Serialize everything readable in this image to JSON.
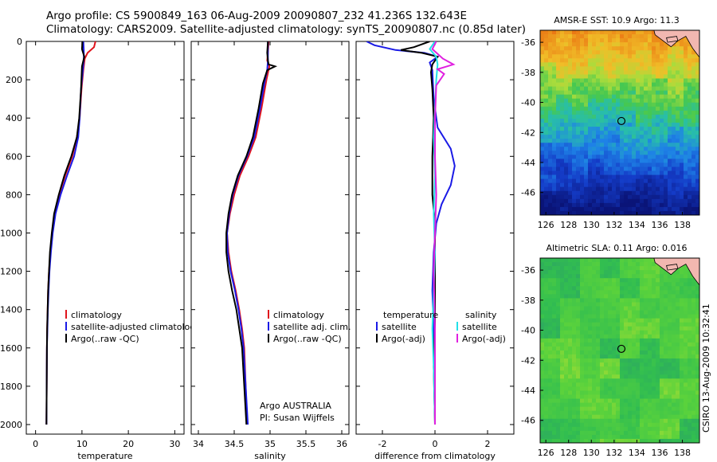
{
  "figure": {
    "title_line1": "Argo profile: CS 5900849_163 06-Aug-2009 20090807_232 41.236S 132.643E",
    "title_line2": "Climatology: CARS2009. Satellite-adjusted climatology: synTS_20090807.nc (0.85d later)",
    "credit": "CSIRO 13-Aug-2009 10:32:41"
  },
  "colors": {
    "climatology": "#e0141c",
    "satellite": "#1a1ae6",
    "argo": "#000000",
    "salinity_satellite": "#22e0e8",
    "salinity_argo": "#e020e0"
  },
  "chart_data": [
    {
      "type": "line",
      "name": "temperature-profile",
      "xlabel": "temperature",
      "ylabel": "",
      "xlim": [
        -2,
        32
      ],
      "ylim": [
        2050,
        0
      ],
      "xticks": [
        0,
        10,
        20,
        30
      ],
      "yticks": [
        0,
        200,
        400,
        600,
        800,
        1000,
        1200,
        1400,
        1600,
        1800,
        2000
      ],
      "legend": [
        "climatology",
        "satellite-adjusted climatolog",
        "Argo(..raw -QC)"
      ],
      "series": [
        {
          "name": "climatology",
          "color_key": "climatology",
          "points": [
            [
              12.9,
              0
            ],
            [
              12.6,
              30
            ],
            [
              11.2,
              60
            ],
            [
              10.6,
              90
            ],
            [
              10.3,
              150
            ],
            [
              9.9,
              250
            ],
            [
              9.5,
              400
            ],
            [
              8.9,
              500
            ],
            [
              7.9,
              600
            ],
            [
              6.4,
              700
            ],
            [
              5.1,
              800
            ],
            [
              4.1,
              900
            ],
            [
              3.6,
              1000
            ],
            [
              3.2,
              1100
            ],
            [
              2.9,
              1200
            ],
            [
              2.7,
              1300
            ],
            [
              2.6,
              1400
            ],
            [
              2.5,
              1500
            ],
            [
              2.45,
              1600
            ],
            [
              2.4,
              1800
            ],
            [
              2.35,
              2000
            ]
          ]
        },
        {
          "name": "satellite-adjusted climatolog",
          "color_key": "satellite",
          "points": [
            [
              10.3,
              0
            ],
            [
              10.4,
              50
            ],
            [
              10.4,
              90
            ],
            [
              10.2,
              150
            ],
            [
              9.8,
              250
            ],
            [
              9.5,
              400
            ],
            [
              9.2,
              500
            ],
            [
              8.3,
              600
            ],
            [
              6.8,
              700
            ],
            [
              5.4,
              800
            ],
            [
              4.3,
              900
            ],
            [
              3.7,
              1000
            ],
            [
              3.3,
              1100
            ],
            [
              3.0,
              1200
            ],
            [
              2.8,
              1300
            ],
            [
              2.65,
              1400
            ],
            [
              2.55,
              1500
            ],
            [
              2.45,
              1600
            ],
            [
              2.4,
              1800
            ],
            [
              2.35,
              2000
            ]
          ]
        },
        {
          "name": "Argo(..raw -QC)",
          "color_key": "argo",
          "points": [
            [
              10.1,
              0
            ],
            [
              10.0,
              40
            ],
            [
              10.5,
              80
            ],
            [
              10.0,
              130
            ],
            [
              9.8,
              250
            ],
            [
              9.4,
              400
            ],
            [
              8.9,
              500
            ],
            [
              7.7,
              600
            ],
            [
              6.2,
              700
            ],
            [
              5.0,
              800
            ],
            [
              4.0,
              900
            ],
            [
              3.5,
              1000
            ],
            [
              3.1,
              1100
            ],
            [
              2.9,
              1200
            ],
            [
              2.7,
              1300
            ],
            [
              2.6,
              1400
            ],
            [
              2.5,
              1500
            ],
            [
              2.45,
              1600
            ],
            [
              2.4,
              1800
            ],
            [
              2.35,
              2000
            ]
          ]
        }
      ]
    },
    {
      "type": "line",
      "name": "salinity-profile",
      "xlabel": "salinity",
      "xlim": [
        33.9,
        36.1
      ],
      "ylim": [
        2050,
        0
      ],
      "xticks": [
        34,
        34.5,
        35,
        35.5,
        36
      ],
      "xtick_labels": [
        "34",
        "34.5",
        "35",
        "35.5",
        "36"
      ],
      "legend": [
        "climatology",
        "satellite adj. clim.",
        "Argo(..raw -QC)"
      ],
      "annotation": [
        "Argo AUSTRALIA",
        "PI: Susan Wijffels"
      ],
      "series": [
        {
          "name": "climatology",
          "color_key": "climatology",
          "points": [
            [
              34.98,
              0
            ],
            [
              34.97,
              60
            ],
            [
              34.96,
              100
            ],
            [
              34.99,
              130
            ],
            [
              34.95,
              200
            ],
            [
              34.88,
              350
            ],
            [
              34.8,
              500
            ],
            [
              34.7,
              600
            ],
            [
              34.58,
              700
            ],
            [
              34.5,
              800
            ],
            [
              34.44,
              900
            ],
            [
              34.4,
              1000
            ],
            [
              34.42,
              1100
            ],
            [
              34.46,
              1200
            ],
            [
              34.52,
              1300
            ],
            [
              34.57,
              1400
            ],
            [
              34.61,
              1500
            ],
            [
              34.64,
              1600
            ],
            [
              34.66,
              1800
            ],
            [
              34.68,
              2000
            ]
          ]
        },
        {
          "name": "satellite adj. clim.",
          "color_key": "satellite",
          "points": [
            [
              34.97,
              0
            ],
            [
              34.97,
              60
            ],
            [
              34.97,
              100
            ],
            [
              34.96,
              150
            ],
            [
              34.93,
              200
            ],
            [
              34.86,
              350
            ],
            [
              34.78,
              500
            ],
            [
              34.68,
              600
            ],
            [
              34.56,
              700
            ],
            [
              34.48,
              800
            ],
            [
              34.43,
              900
            ],
            [
              34.4,
              1000
            ],
            [
              34.41,
              1100
            ],
            [
              34.45,
              1200
            ],
            [
              34.51,
              1300
            ],
            [
              34.56,
              1400
            ],
            [
              34.6,
              1500
            ],
            [
              34.63,
              1600
            ],
            [
              34.66,
              1800
            ],
            [
              34.69,
              2000
            ]
          ]
        },
        {
          "name": "Argo(..raw -QC)",
          "color_key": "argo",
          "points": [
            [
              34.97,
              0
            ],
            [
              34.96,
              60
            ],
            [
              34.97,
              100
            ],
            [
              34.98,
              120
            ],
            [
              35.07,
              130
            ],
            [
              34.96,
              150
            ],
            [
              34.9,
              220
            ],
            [
              34.84,
              350
            ],
            [
              34.76,
              500
            ],
            [
              34.67,
              600
            ],
            [
              34.55,
              700
            ],
            [
              34.47,
              800
            ],
            [
              34.42,
              900
            ],
            [
              34.39,
              1000
            ],
            [
              34.39,
              1100
            ],
            [
              34.42,
              1200
            ],
            [
              34.47,
              1300
            ],
            [
              34.53,
              1400
            ],
            [
              34.57,
              1500
            ],
            [
              34.61,
              1600
            ],
            [
              34.64,
              1800
            ],
            [
              34.67,
              2000
            ]
          ]
        }
      ]
    },
    {
      "type": "line",
      "name": "difference-profile",
      "xlabel": "difference from climatology",
      "xlim": [
        -3,
        3
      ],
      "ylim": [
        2050,
        0
      ],
      "xticks": [
        -2,
        0,
        2
      ],
      "legend_left_title": "temperature",
      "legend_right_title": "salinity",
      "legend_left": [
        "satellite",
        "Argo(-adj)"
      ],
      "legend_right": [
        "satellite",
        "Argo(-adj)"
      ],
      "series": [
        {
          "name": "temperature satellite",
          "color_key": "satellite",
          "points": [
            [
              -2.6,
              0
            ],
            [
              -2.3,
              20
            ],
            [
              -1.5,
              45
            ],
            [
              -0.4,
              60
            ],
            [
              0.1,
              80
            ],
            [
              -0.2,
              110
            ],
            [
              -0.1,
              150
            ],
            [
              -0.05,
              300
            ],
            [
              0.1,
              450
            ],
            [
              0.6,
              560
            ],
            [
              0.75,
              650
            ],
            [
              0.6,
              750
            ],
            [
              0.25,
              850
            ],
            [
              0.05,
              950
            ],
            [
              -0.05,
              1100
            ],
            [
              -0.1,
              1300
            ],
            [
              -0.05,
              1500
            ],
            [
              0.0,
              1700
            ],
            [
              0.0,
              2000
            ]
          ]
        },
        {
          "name": "temperature Argo(-adj)",
          "color_key": "argo",
          "points": [
            [
              -0.2,
              0
            ],
            [
              -0.8,
              30
            ],
            [
              -1.3,
              45
            ],
            [
              -0.5,
              60
            ],
            [
              0.1,
              80
            ],
            [
              -0.1,
              120
            ],
            [
              -0.15,
              160
            ],
            [
              -0.1,
              250
            ],
            [
              -0.05,
              400
            ],
            [
              -0.1,
              600
            ],
            [
              -0.1,
              800
            ],
            [
              0.0,
              950
            ],
            [
              0.0,
              1200
            ],
            [
              0.0,
              1500
            ],
            [
              -0.05,
              1700
            ],
            [
              0.0,
              2000
            ]
          ]
        },
        {
          "name": "salinity satellite",
          "color_key": "salinity_satellite",
          "points": [
            [
              0.0,
              0
            ],
            [
              -0.2,
              40
            ],
            [
              0.05,
              80
            ],
            [
              0.1,
              120
            ],
            [
              0.05,
              200
            ],
            [
              0.0,
              350
            ],
            [
              -0.05,
              500
            ],
            [
              0.0,
              700
            ],
            [
              -0.05,
              900
            ],
            [
              0.0,
              1100
            ],
            [
              -0.05,
              1300
            ],
            [
              -0.1,
              1500
            ],
            [
              -0.05,
              1700
            ],
            [
              0.0,
              2000
            ]
          ]
        },
        {
          "name": "salinity Argo(-adj)",
          "color_key": "salinity_argo",
          "points": [
            [
              0.05,
              0
            ],
            [
              -0.1,
              40
            ],
            [
              0.3,
              90
            ],
            [
              0.7,
              120
            ],
            [
              0.1,
              145
            ],
            [
              0.35,
              170
            ],
            [
              0.05,
              230
            ],
            [
              0.0,
              400
            ],
            [
              0.0,
              600
            ],
            [
              0.05,
              800
            ],
            [
              0.0,
              1000
            ],
            [
              -0.05,
              1200
            ],
            [
              0.0,
              1500
            ],
            [
              0.0,
              2000
            ]
          ]
        }
      ]
    },
    {
      "type": "heatmap",
      "name": "sst-map",
      "title": "AMSR-E SST: 10.9 Argo: 11.3",
      "xlim": [
        125.5,
        139.5
      ],
      "ylim": [
        -47.5,
        -35.2
      ],
      "xticks": [
        126,
        128,
        130,
        132,
        134,
        136,
        138
      ],
      "yticks": [
        -36,
        -38,
        -40,
        -42,
        -44,
        -46
      ],
      "argo_position": [
        132.64,
        -41.24
      ],
      "palette": "warm"
    },
    {
      "type": "heatmap",
      "name": "sla-map",
      "title": "Altimetric SLA: 0.11 Argo: 0.016",
      "xlim": [
        125.5,
        139.5
      ],
      "ylim": [
        -47.5,
        -35.2
      ],
      "xticks": [
        126,
        128,
        130,
        132,
        134,
        136,
        138
      ],
      "yticks": [
        -36,
        -38,
        -40,
        -42,
        -44,
        -46
      ],
      "argo_position": [
        132.64,
        -41.24
      ],
      "palette": "green"
    }
  ]
}
